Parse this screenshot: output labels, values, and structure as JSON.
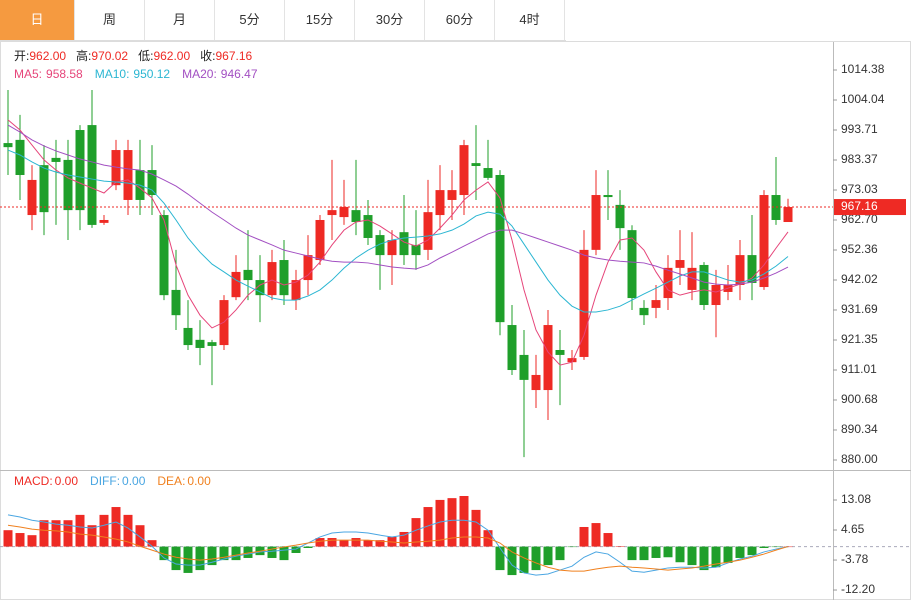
{
  "tabs": [
    {
      "label": "日",
      "active": true
    },
    {
      "label": "周",
      "active": false
    },
    {
      "label": "月",
      "active": false
    },
    {
      "label": "5分",
      "active": false
    },
    {
      "label": "15分",
      "active": false
    },
    {
      "label": "30分",
      "active": false
    },
    {
      "label": "60分",
      "active": false
    },
    {
      "label": "4时",
      "active": false
    }
  ],
  "chart_data": [
    {
      "type": "candlestick",
      "grid": false,
      "up_color": "#ee2a24",
      "down_color": "#1f9f2a",
      "info": [
        {
          "label": "开:",
          "value": "962.00"
        },
        {
          "label": "高:",
          "value": "970.02"
        },
        {
          "label": "低:",
          "value": "962.00"
        },
        {
          "label": "收:",
          "value": "967.16"
        }
      ],
      "ylim": [
        876.55,
        1024.03
      ],
      "yticks": [
        1014.38,
        1004.04,
        993.71,
        983.37,
        973.03,
        {
          "value": 962.7,
          "label": "962.70"
        },
        952.36,
        942.02,
        931.69,
        921.35,
        911.01,
        900.68,
        890.34,
        {
          "value": 880,
          "label": "880.00"
        }
      ],
      "last_price": {
        "value": 967.16,
        "label": "967.16",
        "color": "#ee2a24"
      },
      "open": [
        989.2,
        990.3,
        964.4,
        981.6,
        984.1,
        983.4,
        993.7,
        995.4,
        961.7,
        974.7,
        969.6,
        979.9,
        979.9,
        964.4,
        938.6,
        925.5,
        921.4,
        920.6,
        919.6,
        936.1,
        945.5,
        942.0,
        936.8,
        948.9,
        935.1,
        942.0,
        948.9,
        964.4,
        963.7,
        966.1,
        964.4,
        957.5,
        950.6,
        958.5,
        954.1,
        952.4,
        964.4,
        969.6,
        971.3,
        982.3,
        980.6,
        978.2,
        926.5,
        916.2,
        904.1,
        904.1,
        917.9,
        913.7,
        915.5,
        952.4,
        971.3,
        967.9,
        959.2,
        932.4,
        932.4,
        935.8,
        946.2,
        938.6,
        947.2,
        933.4,
        937.9,
        940.3,
        950.6,
        939.6,
        971.3,
        962.0
      ],
      "high": [
        1007.5,
        998.9,
        981.6,
        988.5,
        990.3,
        990.3,
        995.4,
        1007.5,
        964.4,
        990.3,
        990.3,
        990.3,
        988.5,
        966.1,
        952.4,
        935.1,
        928.2,
        921.4,
        936.8,
        950.6,
        959.2,
        950.6,
        952.4,
        955.8,
        945.5,
        957.5,
        964.4,
        983.4,
        976.5,
        983.4,
        969.6,
        959.2,
        959.2,
        971.3,
        966.1,
        976.5,
        981.6,
        979.9,
        990.3,
        995.4,
        990.3,
        979.9,
        933.4,
        924.8,
        916.2,
        931.7,
        924.8,
        917.9,
        959.2,
        979.9,
        979.9,
        973.0,
        960.9,
        935.1,
        940.3,
        950.6,
        959.2,
        958.5,
        948.2,
        945.5,
        947.2,
        955.8,
        964.4,
        973.0,
        984.4,
        970.02
      ],
      "low": [
        978.2,
        969.6,
        959.2,
        957.5,
        961.0,
        955.8,
        959.2,
        960.0,
        961.0,
        973.0,
        964.4,
        964.4,
        964.4,
        935.1,
        924.8,
        917.9,
        912.7,
        905.8,
        917.9,
        935.1,
        935.1,
        927.5,
        935.1,
        933.4,
        931.7,
        936.8,
        947.2,
        955.8,
        961.0,
        957.5,
        954.1,
        938.6,
        940.3,
        947.2,
        945.5,
        948.9,
        959.2,
        962.7,
        964.4,
        969.6,
        976.5,
        923.0,
        909.3,
        881.0,
        897.9,
        893.8,
        898.9,
        911.0,
        914.5,
        950.6,
        962.7,
        952.4,
        931.7,
        926.5,
        928.9,
        931.7,
        940.3,
        935.1,
        931.7,
        922.3,
        935.1,
        935.1,
        935.1,
        938.6,
        961.0,
        962.0
      ],
      "close": [
        987.8,
        978.2,
        976.5,
        965.4,
        982.7,
        966.1,
        966.1,
        961.0,
        962.7,
        986.8,
        986.8,
        969.6,
        971.3,
        936.8,
        929.9,
        919.6,
        918.6,
        919.3,
        935.1,
        944.8,
        942.0,
        936.8,
        948.2,
        936.8,
        942.0,
        950.6,
        962.7,
        966.1,
        967.2,
        962.0,
        956.5,
        950.6,
        955.8,
        950.6,
        950.6,
        965.4,
        973.0,
        973.0,
        988.5,
        981.3,
        977.2,
        927.5,
        911.0,
        907.6,
        909.3,
        926.5,
        916.2,
        915.1,
        952.4,
        971.3,
        970.6,
        959.9,
        935.8,
        929.9,
        935.1,
        946.2,
        948.9,
        946.2,
        933.4,
        940.3,
        940.3,
        950.6,
        941.0,
        971.3,
        962.7,
        967.16
      ],
      "series": [
        {
          "name": "MA5:",
          "value_label": "958.58",
          "color": "#e6457a",
          "values": [
            997.2,
            993.7,
            988.5,
            983.4,
            979.9,
            977.2,
            975.4,
            973.7,
            972.0,
            975.8,
            976.5,
            973.7,
            970.3,
            962.7,
            947.2,
            936.8,
            929.9,
            925.5,
            927.5,
            931.7,
            936.8,
            940.3,
            942.0,
            940.3,
            941.3,
            943.7,
            948.2,
            954.1,
            959.2,
            962.0,
            962.7,
            960.6,
            957.9,
            955.1,
            953.7,
            955.8,
            959.9,
            964.4,
            969.6,
            973.0,
            975.8,
            970.3,
            955.8,
            938.6,
            924.8,
            917.2,
            912.7,
            913.7,
            923.0,
            936.8,
            948.2,
            955.8,
            956.5,
            952.3,
            944.8,
            938.6,
            936.8,
            937.9,
            938.6,
            937.9,
            939.2,
            940.6,
            942.7,
            947.2,
            953.0,
            958.58
          ]
        },
        {
          "name": "MA10:",
          "value_label": "950.12",
          "color": "#2bb6d2",
          "values": [
            986.8,
            985.1,
            982.7,
            980.6,
            979.2,
            978.2,
            977.5,
            976.8,
            976.1,
            975.8,
            975.4,
            974.7,
            973.0,
            968.5,
            962.7,
            956.5,
            951.6,
            947.5,
            944.8,
            942.0,
            939.9,
            937.9,
            935.8,
            935.1,
            935.1,
            936.5,
            938.6,
            942.0,
            946.1,
            949.6,
            952.3,
            954.4,
            955.8,
            956.5,
            956.8,
            957.2,
            957.9,
            959.2,
            961.3,
            964.1,
            965.4,
            964.7,
            960.6,
            954.4,
            948.2,
            942.0,
            936.8,
            933.0,
            931.0,
            931.0,
            931.7,
            933.0,
            935.1,
            937.2,
            939.2,
            941.3,
            943.4,
            944.8,
            944.8,
            943.4,
            942.0,
            941.3,
            942.0,
            944.1,
            946.8,
            950.12
          ]
        },
        {
          "name": "MA20:",
          "value_label": "946.47",
          "color": "#a24fc2",
          "values": [
            995.4,
            993.0,
            990.3,
            988.2,
            986.5,
            985.1,
            983.7,
            982.7,
            981.6,
            980.9,
            980.3,
            979.9,
            978.5,
            976.5,
            974.4,
            971.6,
            968.5,
            965.4,
            962.7,
            959.9,
            957.5,
            955.8,
            954.1,
            952.3,
            951.3,
            950.3,
            949.2,
            948.5,
            948.2,
            948.2,
            947.9,
            947.2,
            946.5,
            946.1,
            945.8,
            947.2,
            949.6,
            951.6,
            953.7,
            955.8,
            957.9,
            959.2,
            959.2,
            957.9,
            956.5,
            955.1,
            953.7,
            952.3,
            950.6,
            949.6,
            948.9,
            948.5,
            948.2,
            947.9,
            946.8,
            945.4,
            944.1,
            942.7,
            941.3,
            940.6,
            940.3,
            940.6,
            941.3,
            942.7,
            944.4,
            946.47
          ]
        }
      ]
    },
    {
      "type": "macd",
      "grid": false,
      "ylim": [
        -15.0,
        21.5
      ],
      "yticks": [
        13.08,
        4.65,
        -3.78,
        {
          "value": -12.2,
          "label": "-12.20"
        }
      ],
      "bars": {
        "name": "MACD:",
        "value_label": "0.00",
        "color": "#ee2a24",
        "up_color": "#ee2a24",
        "down_color": "#1f9f2a",
        "values": [
          4.6,
          3.8,
          3.2,
          7.4,
          7.4,
          7.4,
          8.9,
          6.0,
          8.9,
          11.1,
          8.9,
          6.0,
          1.8,
          -3.8,
          -6.6,
          -7.4,
          -6.6,
          -5.2,
          -3.8,
          -3.8,
          -3.2,
          -2.4,
          -3.2,
          -3.8,
          -1.8,
          -0.4,
          2.4,
          2.4,
          1.8,
          2.4,
          1.8,
          1.8,
          2.7,
          4.1,
          8.0,
          11.1,
          13.1,
          13.6,
          14.2,
          10.3,
          4.6,
          -6.6,
          -8.0,
          -7.4,
          -6.6,
          -5.2,
          -3.8,
          -0.1,
          5.5,
          6.6,
          3.8,
          0.1,
          -3.8,
          -3.8,
          -3.2,
          -3.0,
          -4.4,
          -5.2,
          -6.6,
          -5.8,
          -4.6,
          -3.2,
          -2.4,
          -0.4,
          -0.1,
          0
        ]
      },
      "series": [
        {
          "name": "DIFF:",
          "value_label": "0.00",
          "color": "#4aa6e2",
          "values": [
            8.9,
            8.3,
            7.4,
            6.9,
            6.3,
            6.0,
            5.5,
            5.2,
            6.0,
            6.9,
            5.2,
            2.7,
            0.1,
            -3.2,
            -4.9,
            -5.2,
            -5.2,
            -4.4,
            -3.5,
            -2.7,
            -2.1,
            -1.5,
            -1.3,
            -1.0,
            -0.7,
            1.0,
            2.7,
            3.8,
            4.1,
            4.1,
            3.8,
            3.2,
            2.7,
            3.2,
            4.6,
            5.8,
            6.9,
            7.4,
            7.4,
            6.9,
            4.6,
            -0.4,
            -5.2,
            -7.4,
            -8.0,
            -7.7,
            -6.6,
            -5.5,
            -3.0,
            -1.5,
            -2.1,
            -4.4,
            -6.9,
            -7.2,
            -6.6,
            -6.0,
            -5.8,
            -5.8,
            -6.0,
            -5.8,
            -4.6,
            -3.5,
            -2.7,
            -1.5,
            -0.7,
            0
          ]
        },
        {
          "name": "DEA:",
          "value_label": "0.00",
          "color": "#f0801e",
          "values": [
            6.0,
            5.5,
            4.9,
            4.6,
            4.4,
            4.1,
            3.5,
            3.2,
            2.7,
            2.1,
            1.3,
            0.1,
            -1.0,
            -2.1,
            -3.0,
            -3.5,
            -3.8,
            -3.5,
            -3.0,
            -2.4,
            -1.8,
            -1.3,
            -0.7,
            -0.1,
            0.4,
            1.0,
            1.5,
            1.8,
            1.8,
            1.8,
            1.8,
            1.5,
            1.3,
            1.0,
            1.3,
            1.5,
            1.8,
            2.4,
            2.7,
            2.7,
            2.4,
            1.0,
            -1.5,
            -3.2,
            -4.6,
            -5.8,
            -6.6,
            -6.9,
            -6.9,
            -6.3,
            -5.8,
            -5.5,
            -5.8,
            -6.0,
            -6.3,
            -6.6,
            -6.3,
            -6.0,
            -5.5,
            -4.9,
            -4.4,
            -3.8,
            -3.0,
            -2.1,
            -1.0,
            0
          ]
        }
      ]
    }
  ]
}
